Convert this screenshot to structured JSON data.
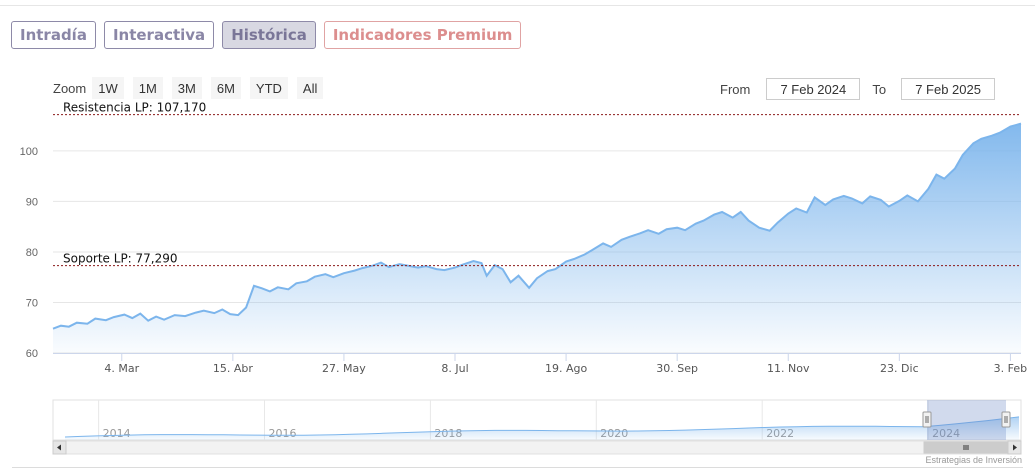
{
  "tabs": [
    {
      "label": "Intradía",
      "state": "normal"
    },
    {
      "label": "Interactiva",
      "state": "normal"
    },
    {
      "label": "Histórica",
      "state": "active"
    },
    {
      "label": "Indicadores Premium",
      "state": "premium"
    }
  ],
  "zoom": {
    "label": "Zoom",
    "buttons": [
      "1W",
      "1M",
      "3M",
      "6M",
      "YTD",
      "All"
    ]
  },
  "range": {
    "from_label": "From",
    "from_value": "7 Feb 2024",
    "to_label": "To",
    "to_value": "7 Feb 2025"
  },
  "credit": "Estrategias de Inversión",
  "colors": {
    "line": "#7cb5ec",
    "reference_line": "#8b1a1a",
    "tab_border": "#8e8aa8",
    "premium": "#dc8e8e"
  },
  "chart_data": {
    "type": "area",
    "x_start": "2024-02-07",
    "x_end": "2025-02-07",
    "ylim": [
      60,
      107.5
    ],
    "yticks": [
      60,
      70,
      80,
      90,
      100
    ],
    "grid": true,
    "xticks": [
      {
        "date": "2024-03-04",
        "label": "4. Mar"
      },
      {
        "date": "2024-04-15",
        "label": "15. Abr"
      },
      {
        "date": "2024-05-27",
        "label": "27. May"
      },
      {
        "date": "2024-07-08",
        "label": "8. Jul"
      },
      {
        "date": "2024-08-19",
        "label": "19. Ago"
      },
      {
        "date": "2024-09-30",
        "label": "30. Sep"
      },
      {
        "date": "2024-11-11",
        "label": "11. Nov"
      },
      {
        "date": "2024-12-23",
        "label": "23. Dic"
      },
      {
        "date": "2025-02-03",
        "label": "3. Feb"
      }
    ],
    "reference_lines": [
      {
        "label": "Resistencia LP: 107,170",
        "value": 107.17
      },
      {
        "label": "Soporte LP: 77,290",
        "value": 77.29
      }
    ],
    "series": [
      {
        "points": [
          [
            "2024-02-07",
            64.8
          ],
          [
            "2024-02-10",
            65.4
          ],
          [
            "2024-02-13",
            65.2
          ],
          [
            "2024-02-16",
            66.0
          ],
          [
            "2024-02-20",
            65.8
          ],
          [
            "2024-02-23",
            66.8
          ],
          [
            "2024-02-27",
            66.5
          ],
          [
            "2024-03-01",
            67.1
          ],
          [
            "2024-03-05",
            67.6
          ],
          [
            "2024-03-08",
            66.9
          ],
          [
            "2024-03-11",
            67.8
          ],
          [
            "2024-03-14",
            66.4
          ],
          [
            "2024-03-17",
            67.2
          ],
          [
            "2024-03-20",
            66.6
          ],
          [
            "2024-03-24",
            67.5
          ],
          [
            "2024-03-28",
            67.3
          ],
          [
            "2024-04-01",
            68.0
          ],
          [
            "2024-04-04",
            68.4
          ],
          [
            "2024-04-08",
            67.9
          ],
          [
            "2024-04-11",
            68.6
          ],
          [
            "2024-04-14",
            67.7
          ],
          [
            "2024-04-17",
            67.5
          ],
          [
            "2024-04-20",
            69.0
          ],
          [
            "2024-04-23",
            73.3
          ],
          [
            "2024-04-26",
            72.8
          ],
          [
            "2024-04-29",
            72.2
          ],
          [
            "2024-05-02",
            73.0
          ],
          [
            "2024-05-06",
            72.6
          ],
          [
            "2024-05-09",
            73.8
          ],
          [
            "2024-05-13",
            74.2
          ],
          [
            "2024-05-16",
            75.1
          ],
          [
            "2024-05-20",
            75.6
          ],
          [
            "2024-05-23",
            75.0
          ],
          [
            "2024-05-27",
            75.8
          ],
          [
            "2024-05-31",
            76.3
          ],
          [
            "2024-06-03",
            76.8
          ],
          [
            "2024-06-07",
            77.3
          ],
          [
            "2024-06-10",
            77.9
          ],
          [
            "2024-06-13",
            77.0
          ],
          [
            "2024-06-17",
            77.6
          ],
          [
            "2024-06-20",
            77.3
          ],
          [
            "2024-06-24",
            76.9
          ],
          [
            "2024-06-27",
            77.2
          ],
          [
            "2024-07-01",
            76.6
          ],
          [
            "2024-07-04",
            76.4
          ],
          [
            "2024-07-08",
            76.9
          ],
          [
            "2024-07-11",
            77.5
          ],
          [
            "2024-07-15",
            78.2
          ],
          [
            "2024-07-18",
            77.8
          ],
          [
            "2024-07-20",
            75.3
          ],
          [
            "2024-07-23",
            77.4
          ],
          [
            "2024-07-26",
            76.6
          ],
          [
            "2024-07-29",
            74.0
          ],
          [
            "2024-08-01",
            75.3
          ],
          [
            "2024-08-05",
            72.9
          ],
          [
            "2024-08-08",
            74.8
          ],
          [
            "2024-08-12",
            76.2
          ],
          [
            "2024-08-15",
            76.6
          ],
          [
            "2024-08-19",
            78.1
          ],
          [
            "2024-08-22",
            78.6
          ],
          [
            "2024-08-26",
            79.5
          ],
          [
            "2024-08-29",
            80.4
          ],
          [
            "2024-09-02",
            81.7
          ],
          [
            "2024-09-05",
            81.0
          ],
          [
            "2024-09-09",
            82.4
          ],
          [
            "2024-09-12",
            83.0
          ],
          [
            "2024-09-16",
            83.7
          ],
          [
            "2024-09-19",
            84.3
          ],
          [
            "2024-09-23",
            83.6
          ],
          [
            "2024-09-26",
            84.5
          ],
          [
            "2024-09-30",
            84.8
          ],
          [
            "2024-10-03",
            84.3
          ],
          [
            "2024-10-07",
            85.6
          ],
          [
            "2024-10-10",
            86.2
          ],
          [
            "2024-10-14",
            87.4
          ],
          [
            "2024-10-17",
            87.9
          ],
          [
            "2024-10-21",
            86.8
          ],
          [
            "2024-10-24",
            87.9
          ],
          [
            "2024-10-27",
            86.2
          ],
          [
            "2024-10-31",
            84.8
          ],
          [
            "2024-11-04",
            84.2
          ],
          [
            "2024-11-07",
            85.8
          ],
          [
            "2024-11-11",
            87.6
          ],
          [
            "2024-11-14",
            88.6
          ],
          [
            "2024-11-18",
            87.8
          ],
          [
            "2024-11-21",
            90.8
          ],
          [
            "2024-11-25",
            89.3
          ],
          [
            "2024-11-28",
            90.4
          ],
          [
            "2024-12-02",
            91.1
          ],
          [
            "2024-12-05",
            90.6
          ],
          [
            "2024-12-09",
            89.6
          ],
          [
            "2024-12-12",
            91.0
          ],
          [
            "2024-12-16",
            90.3
          ],
          [
            "2024-12-19",
            89.0
          ],
          [
            "2024-12-23",
            90.1
          ],
          [
            "2024-12-26",
            91.2
          ],
          [
            "2024-12-30",
            90.0
          ],
          [
            "2025-01-03",
            92.5
          ],
          [
            "2025-01-06",
            95.3
          ],
          [
            "2025-01-09",
            94.5
          ],
          [
            "2025-01-13",
            96.5
          ],
          [
            "2025-01-16",
            99.2
          ],
          [
            "2025-01-20",
            101.5
          ],
          [
            "2025-01-23",
            102.4
          ],
          [
            "2025-01-27",
            103.0
          ],
          [
            "2025-01-30",
            103.6
          ],
          [
            "2025-02-03",
            104.8
          ],
          [
            "2025-02-07",
            105.4
          ]
        ]
      }
    ],
    "navigator": {
      "year_labels": [
        "2014",
        "2016",
        "2018",
        "2020",
        "2022",
        "2024"
      ]
    }
  }
}
